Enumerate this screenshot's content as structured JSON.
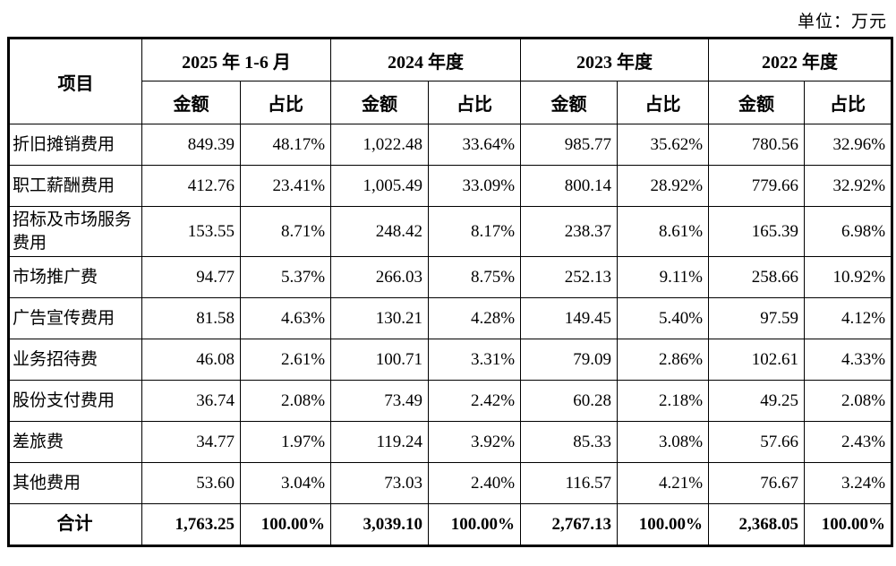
{
  "unit_label": "单位：万元",
  "table": {
    "item_header": "项目",
    "period_headers": [
      "2025 年 1-6 月",
      "2024 年度",
      "2023 年度",
      "2022 年度"
    ],
    "sub_headers": {
      "amount": "金额",
      "ratio": "占比"
    },
    "rows": [
      {
        "label": "折旧摊销费用",
        "values": [
          "849.39",
          "48.17%",
          "1,022.48",
          "33.64%",
          "985.77",
          "35.62%",
          "780.56",
          "32.96%"
        ]
      },
      {
        "label": "职工薪酬费用",
        "values": [
          "412.76",
          "23.41%",
          "1,005.49",
          "33.09%",
          "800.14",
          "28.92%",
          "779.66",
          "32.92%"
        ]
      },
      {
        "label": "招标及市场服务费用",
        "values": [
          "153.55",
          "8.71%",
          "248.42",
          "8.17%",
          "238.37",
          "8.61%",
          "165.39",
          "6.98%"
        ]
      },
      {
        "label": "市场推广费",
        "values": [
          "94.77",
          "5.37%",
          "266.03",
          "8.75%",
          "252.13",
          "9.11%",
          "258.66",
          "10.92%"
        ]
      },
      {
        "label": "广告宣传费用",
        "values": [
          "81.58",
          "4.63%",
          "130.21",
          "4.28%",
          "149.45",
          "5.40%",
          "97.59",
          "4.12%"
        ]
      },
      {
        "label": "业务招待费",
        "values": [
          "46.08",
          "2.61%",
          "100.71",
          "3.31%",
          "79.09",
          "2.86%",
          "102.61",
          "4.33%"
        ]
      },
      {
        "label": "股份支付费用",
        "values": [
          "36.74",
          "2.08%",
          "73.49",
          "2.42%",
          "60.28",
          "2.18%",
          "49.25",
          "2.08%"
        ]
      },
      {
        "label": "差旅费",
        "values": [
          "34.77",
          "1.97%",
          "119.24",
          "3.92%",
          "85.33",
          "3.08%",
          "57.66",
          "2.43%"
        ]
      },
      {
        "label": "其他费用",
        "values": [
          "53.60",
          "3.04%",
          "73.03",
          "2.40%",
          "116.57",
          "4.21%",
          "76.67",
          "3.24%"
        ]
      }
    ],
    "total_row": {
      "label": "合计",
      "values": [
        "1,763.25",
        "100.00%",
        "3,039.10",
        "100.00%",
        "2,767.13",
        "100.00%",
        "2,368.05",
        "100.00%"
      ]
    }
  }
}
